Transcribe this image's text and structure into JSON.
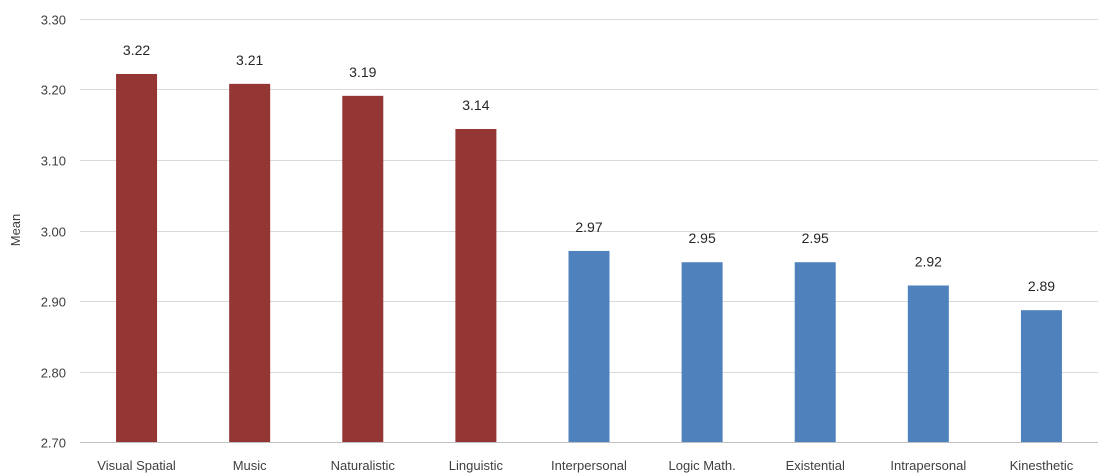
{
  "chart_data": {
    "type": "bar",
    "categories": [
      "Visual Spatial",
      "Music",
      "Naturalistic",
      "Linguistic",
      "Interpersonal",
      "Logic Math.",
      "Existential",
      "Intrapersonal",
      "Kinesthetic"
    ],
    "values": [
      3.222,
      3.208,
      3.191,
      3.144,
      2.971,
      2.955,
      2.955,
      2.922,
      2.887
    ],
    "data_labels": [
      "3.22",
      "3.21",
      "3.19",
      "3.14",
      "2.97",
      "2.95",
      "2.95",
      "2.92",
      "2.89"
    ],
    "bar_colors": [
      "#943634",
      "#943634",
      "#943634",
      "#943634",
      "#4f81bd",
      "#4f81bd",
      "#4f81bd",
      "#4f81bd",
      "#4f81bd"
    ],
    "title": "",
    "xlabel": "",
    "ylabel": "Mean",
    "ylim": [
      2.7,
      3.3
    ],
    "yticks": [
      2.7,
      2.8,
      2.9,
      3.0,
      3.1,
      3.2,
      3.3
    ],
    "ytick_labels": [
      "2.70",
      "2.80",
      "2.90",
      "3.00",
      "3.10",
      "3.20",
      "3.30"
    ],
    "grid": true,
    "legend": "none"
  }
}
